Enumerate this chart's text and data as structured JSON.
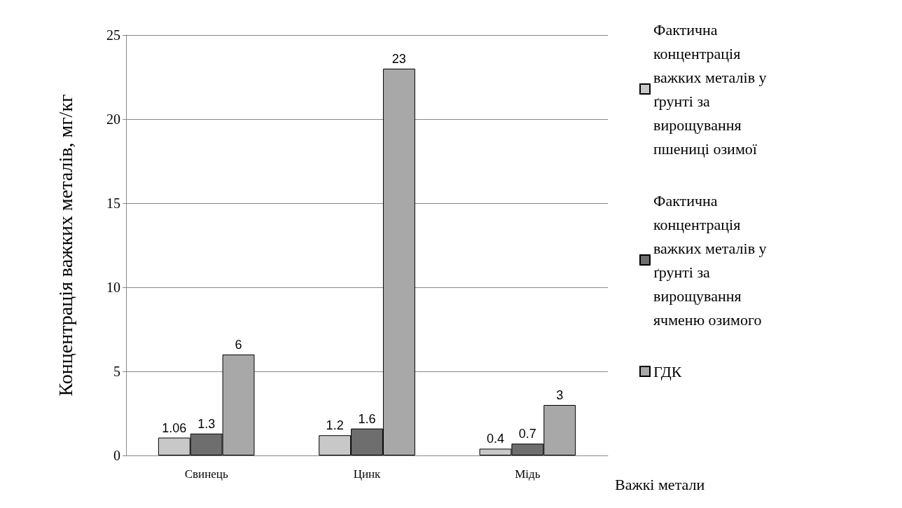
{
  "chart_data": {
    "type": "bar",
    "xlabel": "Важкі метали",
    "ylabel": "Концентрація важких металів, мг/кг",
    "categories": [
      "Свинець",
      "Цинк",
      "Мідь"
    ],
    "series": [
      {
        "name": "Фактична концентрація важких металів у ґрунті за вирощування пшениці озимої",
        "color": "#c8c8c8",
        "values": [
          1.06,
          1.2,
          0.4
        ]
      },
      {
        "name": "Фактична концентрація важких металів у ґрунті за вирощування ячменю озимого",
        "color": "#6e6e6e",
        "values": [
          1.3,
          1.6,
          0.7
        ]
      },
      {
        "name": "ГДК",
        "color": "#a8a8a8",
        "values": [
          6,
          23,
          3
        ]
      }
    ],
    "ylim": [
      0,
      25
    ],
    "yticks": [
      0,
      5,
      10,
      15,
      20,
      25
    ],
    "grid": "y",
    "legend": "right",
    "data_labels": true
  }
}
